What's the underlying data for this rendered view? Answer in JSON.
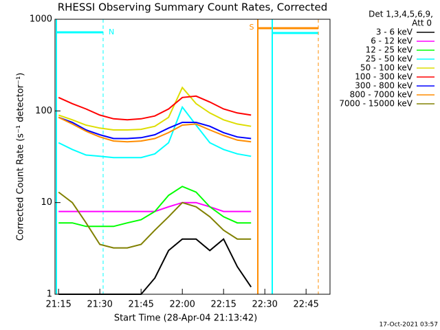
{
  "chart_data": {
    "type": "line",
    "title": "RHESSI Observing Summary Count Rates, Corrected",
    "x_label": "Start Time (28-Apr-04 21:13:42)",
    "y_label": "Corrected Count Rate (s⁻¹ detector⁻¹)",
    "legend_title": [
      "Det 1,3,4,5,6,9,",
      "Att 0"
    ],
    "footer": "17-Oct-2021 03:57",
    "flag_labels": [
      "N",
      "S"
    ],
    "log_y": true,
    "xlim": [
      13.7,
      113.7
    ],
    "ylim": [
      1,
      1000
    ],
    "xticks": [
      {
        "value": 15,
        "label": "21:15"
      },
      {
        "value": 30,
        "label": "21:30"
      },
      {
        "value": 45,
        "label": "21:45"
      },
      {
        "value": 60,
        "label": "22:00"
      },
      {
        "value": 75,
        "label": "22:15"
      },
      {
        "value": 90,
        "label": "22:30"
      },
      {
        "value": 105,
        "label": "22:45"
      }
    ],
    "yticks": [
      1,
      10,
      100,
      1000
    ],
    "x": [
      15,
      20,
      25,
      30,
      35,
      40,
      45,
      50,
      55,
      60,
      65,
      70,
      75,
      80,
      85
    ],
    "series": [
      {
        "name": "3 - 6 keV",
        "color": "#000000",
        "values": [
          1,
          1,
          1,
          1,
          1,
          1,
          1,
          1.5,
          3,
          4,
          4,
          3,
          4,
          2,
          1.2
        ]
      },
      {
        "name": "6 - 12 keV",
        "color": "#ff00ff",
        "values": [
          8,
          8,
          8,
          8,
          8,
          8,
          8,
          8,
          9,
          10,
          10,
          9,
          8,
          8,
          8
        ]
      },
      {
        "name": "12 - 25 keV",
        "color": "#00ff00",
        "values": [
          6,
          6,
          5.5,
          5.5,
          5.5,
          6,
          6.5,
          8,
          12,
          15,
          13,
          9,
          7,
          6,
          6
        ]
      },
      {
        "name": "25 - 50 keV",
        "color": "#00ffff",
        "values": [
          45,
          38,
          33,
          32,
          31,
          31,
          31,
          34,
          45,
          110,
          70,
          45,
          38,
          34,
          32
        ]
      },
      {
        "name": "50 - 100 keV",
        "color": "#dddd00",
        "values": [
          90,
          80,
          70,
          65,
          62,
          62,
          63,
          68,
          85,
          180,
          120,
          95,
          80,
          72,
          68
        ]
      },
      {
        "name": "100 - 300 keV",
        "color": "#ff0000",
        "values": [
          140,
          120,
          105,
          90,
          82,
          80,
          82,
          88,
          105,
          140,
          145,
          125,
          105,
          95,
          90
        ]
      },
      {
        "name": "300 - 800 keV",
        "color": "#0000ff",
        "values": [
          85,
          75,
          62,
          55,
          50,
          50,
          51,
          55,
          65,
          75,
          75,
          68,
          58,
          52,
          50
        ]
      },
      {
        "name": "800 - 7000 keV",
        "color": "#ff8c00",
        "values": [
          85,
          72,
          60,
          52,
          47,
          46,
          47,
          50,
          58,
          70,
          72,
          62,
          54,
          48,
          46
        ]
      },
      {
        "name": "7000 - 15000 keV",
        "color": "#808000",
        "values": [
          13,
          10,
          6,
          3.5,
          3.2,
          3.2,
          3.5,
          5,
          7,
          10,
          9,
          7,
          5,
          4,
          4
        ]
      }
    ]
  }
}
